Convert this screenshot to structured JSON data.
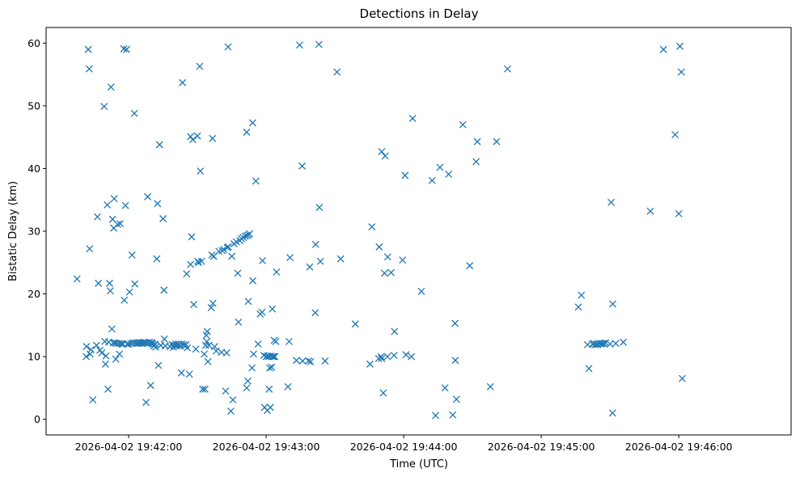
{
  "chart_data": {
    "type": "scatter",
    "title": "Detections in Delay",
    "xlabel": "Time (UTC)",
    "ylabel": "Bistatic Delay (km)",
    "marker": "x",
    "color": "#1f77b4",
    "x_unit": "seconds after 2026-04-02 19:41:00",
    "xlim": [
      0,
      325
    ],
    "ylim": [
      -2.5,
      62.5
    ],
    "xticks": [
      {
        "value": 36,
        "label": "2026-04-02 19:42:00"
      },
      {
        "value": 96,
        "label": "2026-04-02 19:43:00"
      },
      {
        "value": 156,
        "label": "2026-04-02 19:44:00"
      },
      {
        "value": 216,
        "label": "2026-04-02 19:45:00"
      },
      {
        "value": 276,
        "label": "2026-04-02 19:46:00"
      }
    ],
    "yticks": [
      0,
      10,
      20,
      30,
      40,
      50,
      60
    ],
    "points": [
      [
        13.5,
        22.4
      ],
      [
        17.5,
        10.0
      ],
      [
        17.6,
        11.6
      ],
      [
        18.4,
        59.0
      ],
      [
        18.8,
        55.9
      ],
      [
        19,
        27.2
      ],
      [
        19.2,
        10.4
      ],
      [
        19.6,
        11.1
      ],
      [
        20.4,
        3.1
      ],
      [
        22,
        11.8
      ],
      [
        22.4,
        32.3
      ],
      [
        22.8,
        21.7
      ],
      [
        23.5,
        11.0
      ],
      [
        24.3,
        10.6
      ],
      [
        25.3,
        49.9
      ],
      [
        25.6,
        12.4
      ],
      [
        25.9,
        8.8
      ],
      [
        26.1,
        10.1
      ],
      [
        26.7,
        34.2
      ],
      [
        27.0,
        4.8
      ],
      [
        27.3,
        12.3
      ],
      [
        27.7,
        21.7
      ],
      [
        28.0,
        20.5
      ],
      [
        28.3,
        53.0
      ],
      [
        28.7,
        14.4
      ],
      [
        29.0,
        31.9
      ],
      [
        29.3,
        12.2
      ],
      [
        29.5,
        30.5
      ],
      [
        29.7,
        35.2
      ],
      [
        30.1,
        12.2
      ],
      [
        30.4,
        9.6
      ],
      [
        30.7,
        12.1
      ],
      [
        31.2,
        31.1
      ],
      [
        31.7,
        12.1
      ],
      [
        32.0,
        10.4
      ],
      [
        32.3,
        31.2
      ],
      [
        32.6,
        12.1
      ],
      [
        33.1,
        12.0
      ],
      [
        33.5,
        12.0
      ],
      [
        33.9,
        59.1
      ],
      [
        34.1,
        19.0
      ],
      [
        34.6,
        34.1
      ],
      [
        35.1,
        59.0
      ],
      [
        35.4,
        12.0
      ],
      [
        36.0,
        12.0
      ],
      [
        36.4,
        20.3
      ],
      [
        37.0,
        12.1
      ],
      [
        37.5,
        26.2
      ],
      [
        38.0,
        12.2
      ],
      [
        38.5,
        48.8
      ],
      [
        38.7,
        21.6
      ],
      [
        39.0,
        12.2
      ],
      [
        39.5,
        12.1
      ],
      [
        40.0,
        12.2
      ],
      [
        40.4,
        12.1
      ],
      [
        41.0,
        12.2
      ],
      [
        41.4,
        12.2
      ],
      [
        41.8,
        12.1
      ],
      [
        42.3,
        12.2
      ],
      [
        42.7,
        12.3
      ],
      [
        43.1,
        12.2
      ],
      [
        43.6,
        2.7
      ],
      [
        43.9,
        12.2
      ],
      [
        44.3,
        35.5
      ],
      [
        44.6,
        12.1
      ],
      [
        45.0,
        12.3
      ],
      [
        45.6,
        5.4
      ],
      [
        45.9,
        12.2
      ],
      [
        46.2,
        12.2
      ],
      [
        46.5,
        12.0
      ],
      [
        47.0,
        11.7
      ],
      [
        47.5,
        12.0
      ],
      [
        47.8,
        11.5
      ],
      [
        48.3,
        25.6
      ],
      [
        48.6,
        34.4
      ],
      [
        49.0,
        8.6
      ],
      [
        49.5,
        43.8
      ],
      [
        50.0,
        11.8
      ],
      [
        51.0,
        32.0
      ],
      [
        51.4,
        20.6
      ],
      [
        51.6,
        12.8
      ],
      [
        52.0,
        11.7
      ],
      [
        54.0,
        11.6
      ],
      [
        55.0,
        11.9
      ],
      [
        55.5,
        11.5
      ],
      [
        56.0,
        11.8
      ],
      [
        56.6,
        12.0
      ],
      [
        57.0,
        11.7
      ],
      [
        57.5,
        11.9
      ],
      [
        58.0,
        12.0
      ],
      [
        58.5,
        11.7
      ],
      [
        59.0,
        7.4
      ],
      [
        59.2,
        12.0
      ],
      [
        59.5,
        53.7
      ],
      [
        60.0,
        11.9
      ],
      [
        60.5,
        11.7
      ],
      [
        61.0,
        11.9
      ],
      [
        61.3,
        23.2
      ],
      [
        61.6,
        11.4
      ],
      [
        62.5,
        7.2
      ],
      [
        63.0,
        45.1
      ],
      [
        63.0,
        24.7
      ],
      [
        63.5,
        29.1
      ],
      [
        64.0,
        44.6
      ],
      [
        64.4,
        18.3
      ],
      [
        65.3,
        11.2
      ],
      [
        66.0,
        45.2
      ],
      [
        66.2,
        25.2
      ],
      [
        66.5,
        25.0
      ],
      [
        67.0,
        56.3
      ],
      [
        67.3,
        39.6
      ],
      [
        67.8,
        25.2
      ],
      [
        68.3,
        4.8
      ],
      [
        69.0,
        10.4
      ],
      [
        69.3,
        4.8
      ],
      [
        69.6,
        11.8
      ],
      [
        69.9,
        13.4
      ],
      [
        70.1,
        12.4
      ],
      [
        70.3,
        14.0
      ],
      [
        70.6,
        9.2
      ],
      [
        71.0,
        11.8
      ],
      [
        72.0,
        17.8
      ],
      [
        72.3,
        26.2
      ],
      [
        72.6,
        44.8
      ],
      [
        72.8,
        18.5
      ],
      [
        73.1,
        26.0
      ],
      [
        73.5,
        11.6
      ],
      [
        74.2,
        10.9
      ],
      [
        75.4,
        26.8
      ],
      [
        76.5,
        10.7
      ],
      [
        76.8,
        26.9
      ],
      [
        77.5,
        27.1
      ],
      [
        78.3,
        4.5
      ],
      [
        78.8,
        10.6
      ],
      [
        79.0,
        27.4
      ],
      [
        79.4,
        59.4
      ],
      [
        79.5,
        27.5
      ],
      [
        80.6,
        1.3
      ],
      [
        81.0,
        26.0
      ],
      [
        81.5,
        3.1
      ],
      [
        82.0,
        28.0
      ],
      [
        83.0,
        28.3
      ],
      [
        83.6,
        23.3
      ],
      [
        83.9,
        15.5
      ],
      [
        84.5,
        28.5
      ],
      [
        85.2,
        28.8
      ],
      [
        86.0,
        29.0
      ],
      [
        86.8,
        29.2
      ],
      [
        87.5,
        45.8
      ],
      [
        87.5,
        5.0
      ],
      [
        87.6,
        29.3
      ],
      [
        88.0,
        6.1
      ],
      [
        88.2,
        18.8
      ],
      [
        88.3,
        29.4
      ],
      [
        88.7,
        29.6
      ],
      [
        89.8,
        8.2
      ],
      [
        90.1,
        47.3
      ],
      [
        90.2,
        22.1
      ],
      [
        90.5,
        10.4
      ],
      [
        91.5,
        38.0
      ],
      [
        92.5,
        12.0
      ],
      [
        93.4,
        16.8
      ],
      [
        94.2,
        17.1
      ],
      [
        94.4,
        25.3
      ],
      [
        95.0,
        10.2
      ],
      [
        95.3,
        1.9
      ],
      [
        96.0,
        10.0
      ],
      [
        96.5,
        1.4
      ],
      [
        96.6,
        10.1
      ],
      [
        97.2,
        10.0
      ],
      [
        97.3,
        4.8
      ],
      [
        97.5,
        8.2
      ],
      [
        97.8,
        1.9
      ],
      [
        98.0,
        10.1
      ],
      [
        98.4,
        8.3
      ],
      [
        98.7,
        17.6
      ],
      [
        98.8,
        10.0
      ],
      [
        99.3,
        10.0
      ],
      [
        99.5,
        12.6
      ],
      [
        99.8,
        10.0
      ],
      [
        100.5,
        23.5
      ],
      [
        100.2,
        12.4
      ],
      [
        105.5,
        5.2
      ],
      [
        106.0,
        12.4
      ],
      [
        106.4,
        25.8
      ],
      [
        109.2,
        9.4
      ],
      [
        110.6,
        59.7
      ],
      [
        111.7,
        40.4
      ],
      [
        111.9,
        9.3
      ],
      [
        114.5,
        9.3
      ],
      [
        115.0,
        24.3
      ],
      [
        115.4,
        9.2
      ],
      [
        117.4,
        17.0
      ],
      [
        117.6,
        27.9
      ],
      [
        119.0,
        59.8
      ],
      [
        119.2,
        33.8
      ],
      [
        119.7,
        25.2
      ],
      [
        121.7,
        9.3
      ],
      [
        126.9,
        55.4
      ],
      [
        128.5,
        25.6
      ],
      [
        134.9,
        15.2
      ],
      [
        141.3,
        8.8
      ],
      [
        142.1,
        30.7
      ],
      [
        145.1,
        9.7
      ],
      [
        145.3,
        27.5
      ],
      [
        146.1,
        10.0
      ],
      [
        146.4,
        9.7
      ],
      [
        146.4,
        42.7
      ],
      [
        147.1,
        4.2
      ],
      [
        147.6,
        23.3
      ],
      [
        147.9,
        42.0
      ],
      [
        148.9,
        10.0
      ],
      [
        149.0,
        25.9
      ],
      [
        150.5,
        23.4
      ],
      [
        152.0,
        14.0
      ],
      [
        151.8,
        10.2
      ],
      [
        155.5,
        25.4
      ],
      [
        156.6,
        38.9
      ],
      [
        157.0,
        10.3
      ],
      [
        159.4,
        10.0
      ],
      [
        159.9,
        48.0
      ],
      [
        163.7,
        20.4
      ],
      [
        168.4,
        38.1
      ],
      [
        169.9,
        0.6
      ],
      [
        171.8,
        40.2
      ],
      [
        174.0,
        5.0
      ],
      [
        175.6,
        39.1
      ],
      [
        177.4,
        0.7
      ],
      [
        178.4,
        15.3
      ],
      [
        178.5,
        9.4
      ],
      [
        179.0,
        3.2
      ],
      [
        181.8,
        47.0
      ],
      [
        184.8,
        24.5
      ],
      [
        187.6,
        41.1
      ],
      [
        188.1,
        44.3
      ],
      [
        193.8,
        5.2
      ],
      [
        196.5,
        44.3
      ],
      [
        201.3,
        55.9
      ],
      [
        232.2,
        17.9
      ],
      [
        233.5,
        19.8
      ],
      [
        236.2,
        11.9
      ],
      [
        236.8,
        8.1
      ],
      [
        238.4,
        12.0
      ],
      [
        239.0,
        12.1
      ],
      [
        239.5,
        11.9
      ],
      [
        240.2,
        12.0
      ],
      [
        240.7,
        11.9
      ],
      [
        241.5,
        12.1
      ],
      [
        242.1,
        12.0
      ],
      [
        242.6,
        12.1
      ],
      [
        243.3,
        12.1
      ],
      [
        244.1,
        12.2
      ],
      [
        246.0,
        12.0
      ],
      [
        246.5,
        34.6
      ],
      [
        247.1,
        1.0
      ],
      [
        247.2,
        18.4
      ],
      [
        248.5,
        12.1
      ],
      [
        251.8,
        12.3
      ],
      [
        263.6,
        33.2
      ],
      [
        269.3,
        59.0
      ],
      [
        274.4,
        45.4
      ],
      [
        276.0,
        32.8
      ],
      [
        276.5,
        59.5
      ],
      [
        277.1,
        55.4
      ],
      [
        277.5,
        6.5
      ]
    ]
  }
}
